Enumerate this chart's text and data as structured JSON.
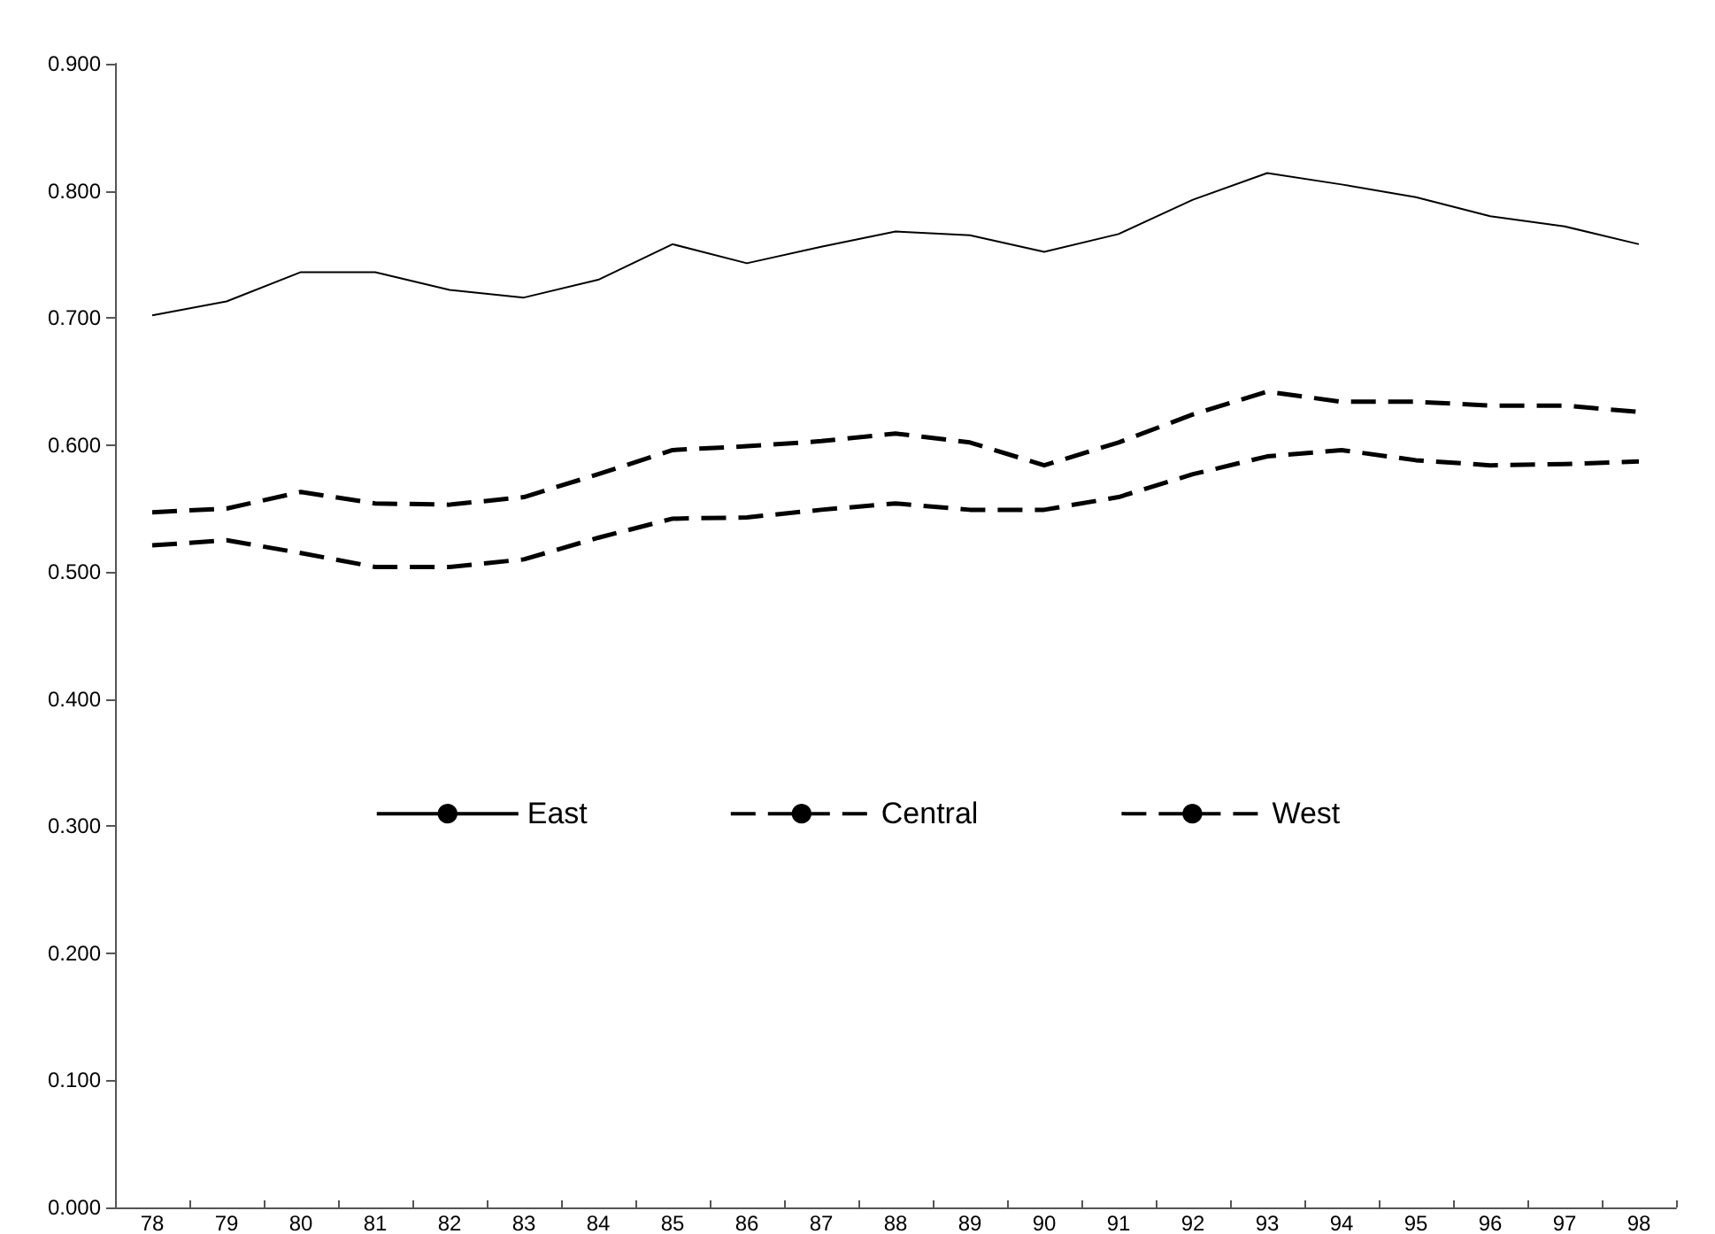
{
  "chart_data": {
    "type": "line",
    "categories": [
      "78",
      "79",
      "80",
      "81",
      "82",
      "83",
      "84",
      "85",
      "86",
      "87",
      "88",
      "89",
      "90",
      "91",
      "92",
      "93",
      "94",
      "95",
      "96",
      "97",
      "98"
    ],
    "series": [
      {
        "name": "East",
        "color": "#000000",
        "line_style": "solid",
        "values": [
          0.702,
          0.713,
          0.736,
          0.736,
          0.722,
          0.716,
          0.73,
          0.758,
          0.743,
          0.756,
          0.768,
          0.765,
          0.752,
          0.766,
          0.793,
          0.814,
          0.805,
          0.795,
          0.78,
          0.772,
          0.758
        ]
      },
      {
        "name": "Central",
        "color": "#000000",
        "line_style": "dashed",
        "values": [
          0.547,
          0.55,
          0.563,
          0.554,
          0.553,
          0.559,
          0.577,
          0.596,
          0.599,
          0.603,
          0.609,
          0.602,
          0.584,
          0.602,
          0.624,
          0.642,
          0.634,
          0.634,
          0.631,
          0.631,
          0.626
        ]
      },
      {
        "name": "West",
        "color": "#000000",
        "line_style": "dashed",
        "values": [
          0.521,
          0.525,
          0.515,
          0.504,
          0.504,
          0.51,
          0.527,
          0.542,
          0.543,
          0.549,
          0.554,
          0.549,
          0.549,
          0.559,
          0.577,
          0.591,
          0.596,
          0.588,
          0.584,
          0.585,
          0.587
        ]
      }
    ],
    "ylim": [
      0,
      0.9
    ],
    "yticks": [
      {
        "value": 0,
        "label": "0.000"
      },
      {
        "value": 0.1,
        "label": "0.100"
      },
      {
        "value": 0.2,
        "label": "0.200"
      },
      {
        "value": 0.3,
        "label": "0.300"
      },
      {
        "value": 0.4,
        "label": "0.400"
      },
      {
        "value": 0.5,
        "label": "0.500"
      },
      {
        "value": 0.6,
        "label": "0.600"
      },
      {
        "value": 0.7,
        "label": "0.700"
      },
      {
        "value": 0.8,
        "label": "0.800"
      },
      {
        "value": 0.9,
        "label": "0.900"
      }
    ],
    "grid": false,
    "legend": "center",
    "marker": "none"
  }
}
